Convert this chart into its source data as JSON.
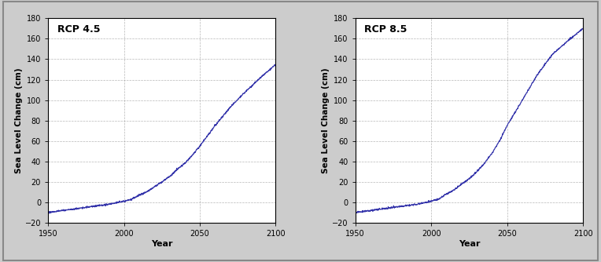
{
  "title_left": "RCP 4.5",
  "title_right": "RCP 8.5",
  "ylabel": "Sea Level Change (cm)",
  "xlabel": "Year",
  "xlim": [
    1950,
    2100
  ],
  "ylim": [
    -20,
    180
  ],
  "yticks": [
    -20,
    0,
    20,
    40,
    60,
    80,
    100,
    120,
    140,
    160,
    180
  ],
  "xticks": [
    1950,
    2000,
    2050,
    2100
  ],
  "line_color": "#3333aa",
  "grid_color": "#999999",
  "plot_bg": "#ffffff",
  "fig_bg": "#cccccc",
  "rcp45_points": {
    "years": [
      1950,
      1960,
      1970,
      1980,
      1990,
      2000,
      2005,
      2010,
      2015,
      2020,
      2025,
      2030,
      2035,
      2040,
      2045,
      2050,
      2060,
      2070,
      2080,
      2090,
      2100
    ],
    "vals": [
      -10,
      -8,
      -6,
      -4,
      -2,
      1,
      3,
      7,
      10,
      15,
      20,
      25,
      32,
      38,
      46,
      55,
      75,
      93,
      108,
      122,
      135
    ]
  },
  "rcp85_points": {
    "years": [
      1950,
      1960,
      1970,
      1980,
      1990,
      2000,
      2005,
      2010,
      2015,
      2020,
      2025,
      2030,
      2035,
      2040,
      2045,
      2050,
      2060,
      2070,
      2080,
      2090,
      2100
    ],
    "vals": [
      -10,
      -8,
      -6,
      -4,
      -2,
      1,
      3,
      8,
      12,
      18,
      23,
      30,
      38,
      48,
      60,
      75,
      100,
      125,
      145,
      158,
      170
    ]
  }
}
